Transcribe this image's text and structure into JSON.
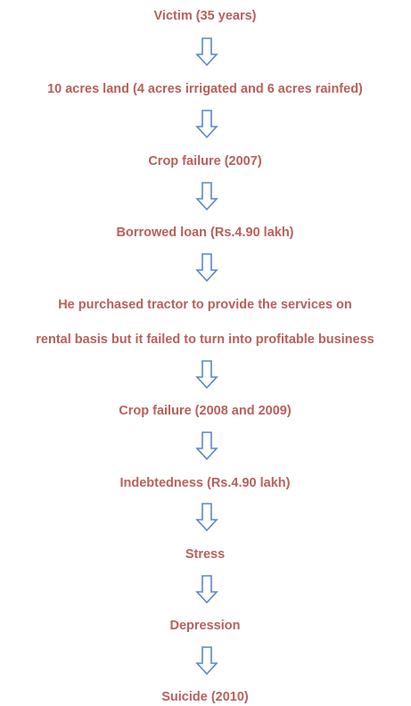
{
  "nodes": [
    {
      "lines": [
        "Victim (35 years)"
      ]
    },
    {
      "lines": [
        "10 acres land (4 acres irrigated and 6 acres rainfed)"
      ]
    },
    {
      "lines": [
        "Crop failure (2007)"
      ]
    },
    {
      "lines": [
        "Borrowed loan (Rs.4.90 lakh)"
      ]
    },
    {
      "lines": [
        "He purchased tractor to provide the services on",
        "rental basis but it failed to turn into profitable business"
      ]
    },
    {
      "lines": [
        "Crop failure (2008 and 2009)"
      ]
    },
    {
      "lines": [
        "Indebtedness (Rs.4.90 lakh)"
      ]
    },
    {
      "lines": [
        "Stress"
      ]
    },
    {
      "lines": [
        "Depression"
      ]
    },
    {
      "lines": [
        "Suicide (2010)"
      ]
    }
  ]
}
